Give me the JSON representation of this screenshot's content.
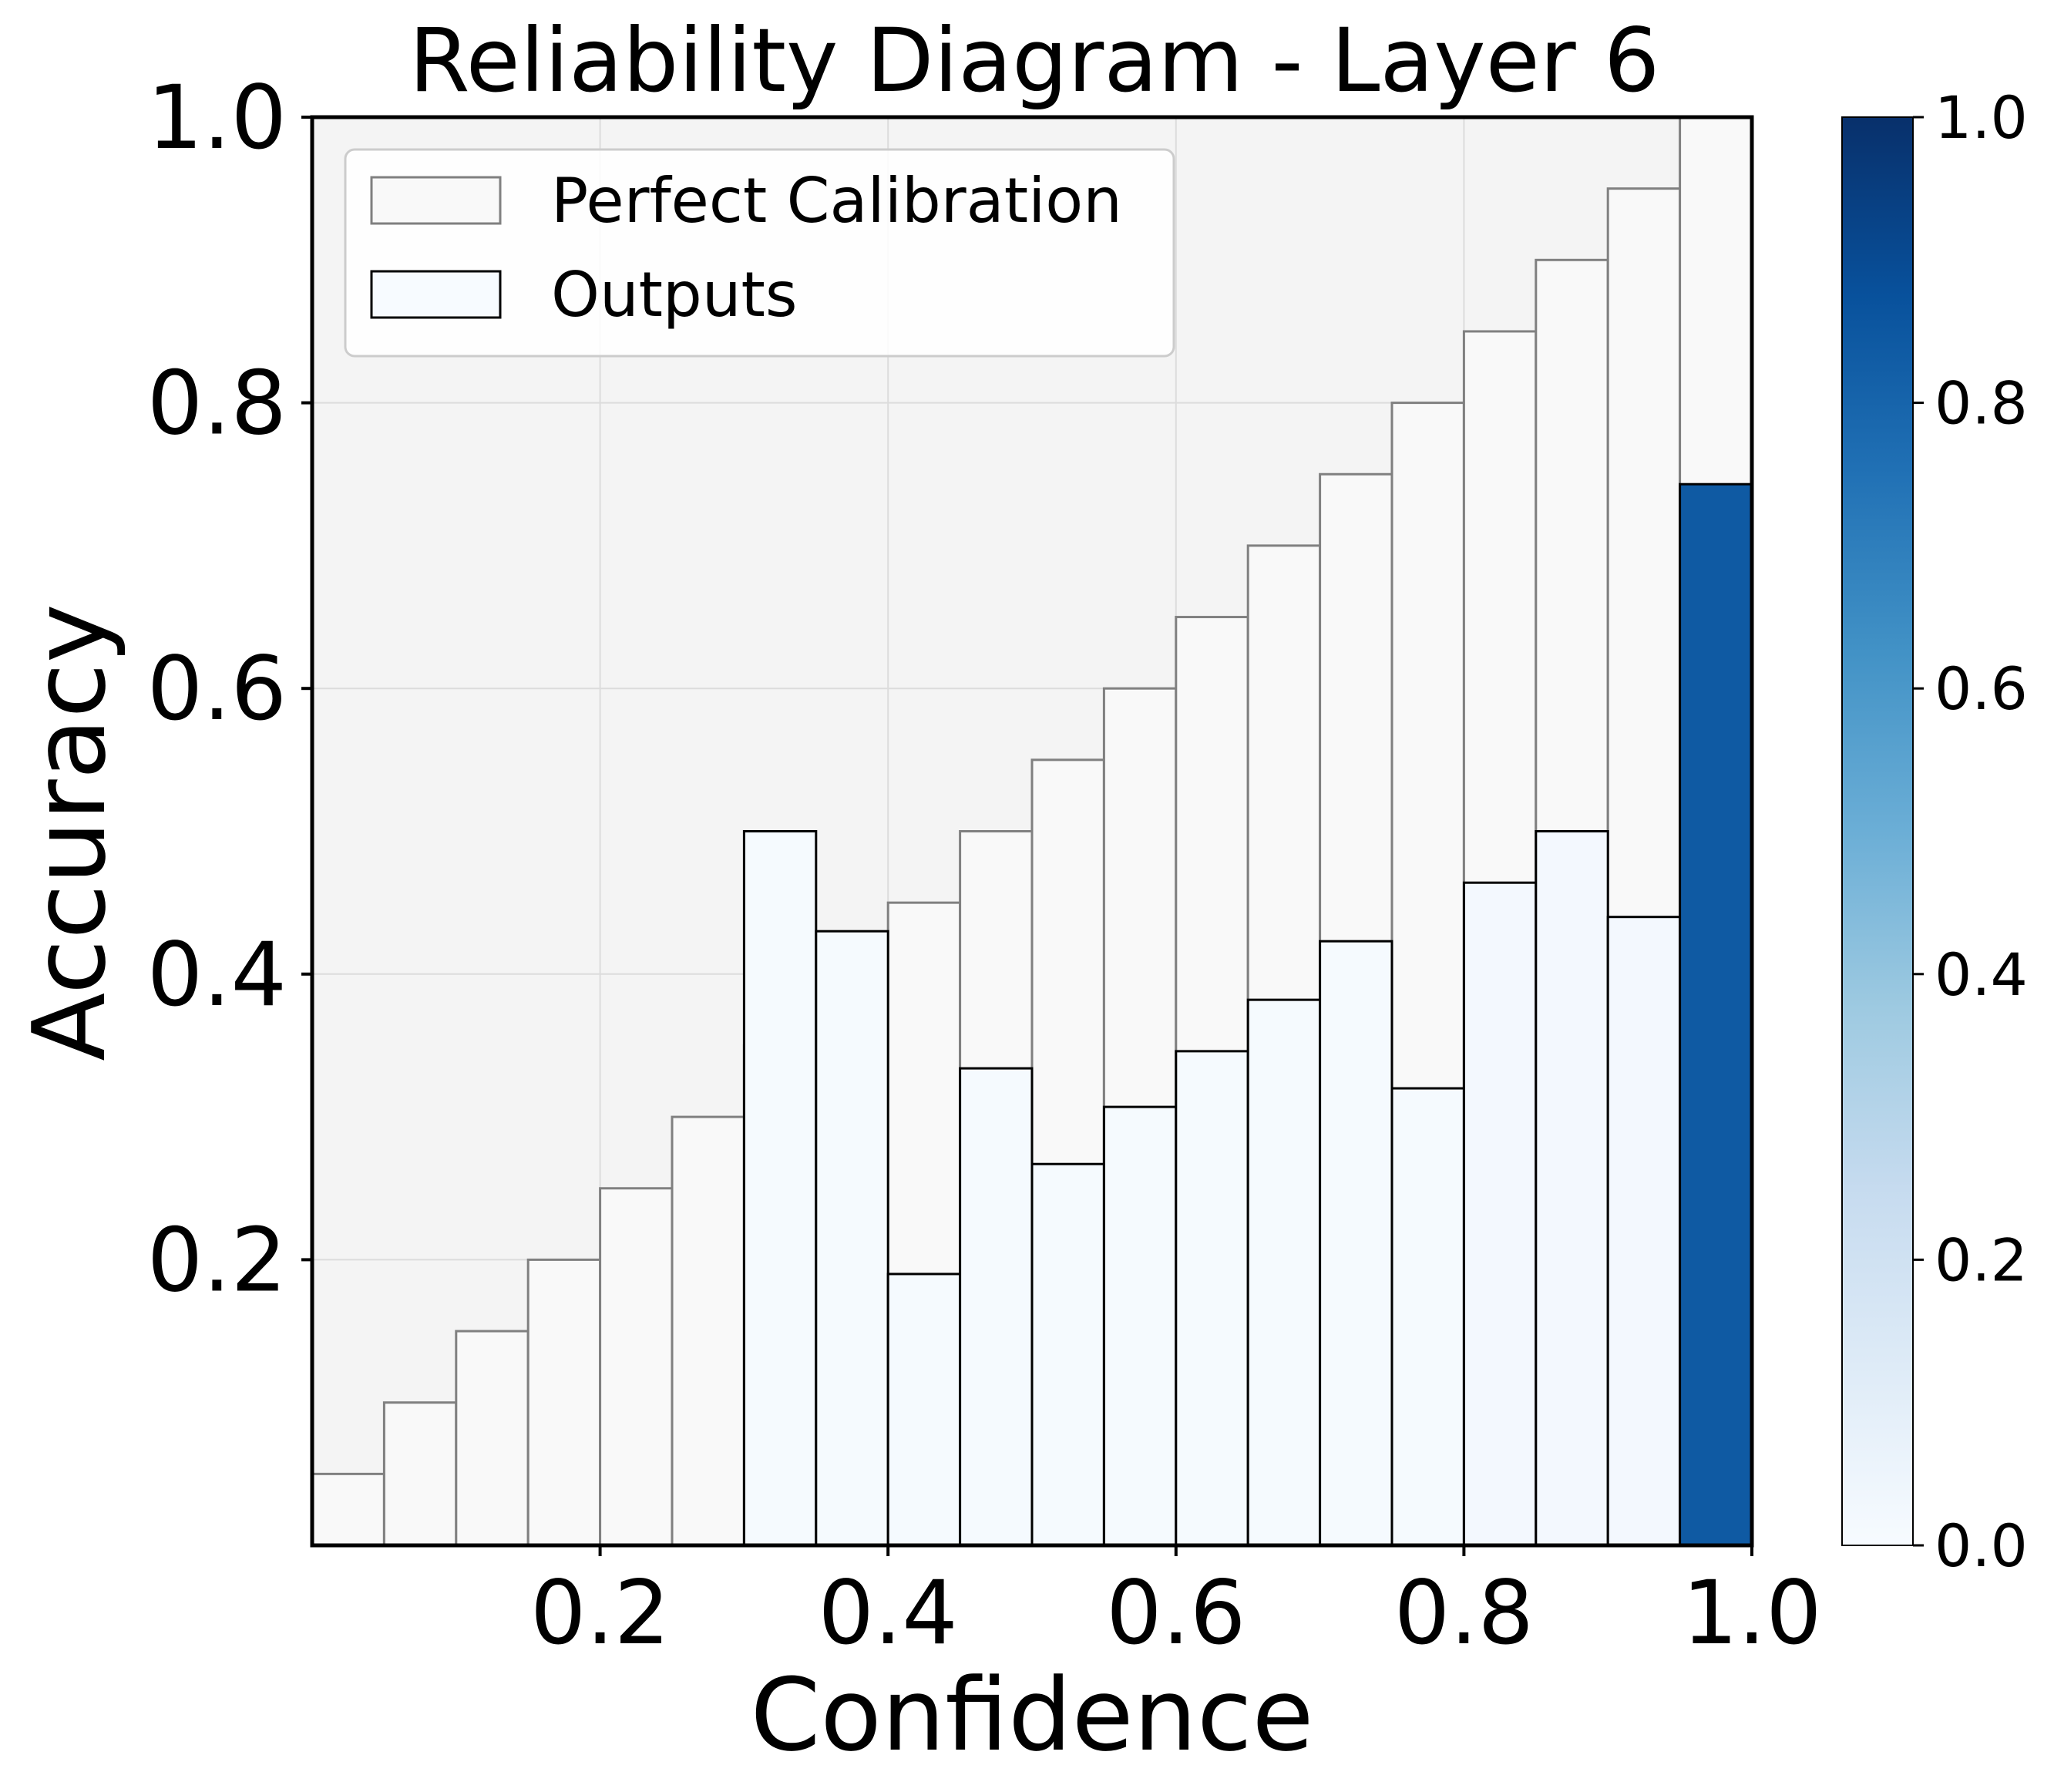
{
  "chart_data": {
    "type": "bar",
    "title": "Reliability Diagram - Layer 6",
    "xlabel": "Confidence",
    "ylabel": "Accuracy",
    "xlim": [
      0,
      1
    ],
    "ylim": [
      0,
      1
    ],
    "grid": true,
    "legend_position": "top-left",
    "x_ticks": [
      "0.2",
      "0.4",
      "0.6",
      "0.8",
      "1.0"
    ],
    "y_ticks": [
      "0.2",
      "0.4",
      "0.6",
      "0.8",
      "1.0"
    ],
    "bin_width": 0.05,
    "series": [
      {
        "name": "Perfect Calibration",
        "bin_starts": [
          0.0,
          0.05,
          0.1,
          0.15,
          0.2,
          0.25,
          0.3,
          0.35,
          0.4,
          0.45,
          0.5,
          0.55,
          0.6,
          0.65,
          0.7,
          0.75,
          0.8,
          0.85,
          0.9,
          0.95
        ],
        "values": [
          0.05,
          0.1,
          0.15,
          0.2,
          0.25,
          0.3,
          0.35,
          0.4,
          0.45,
          0.5,
          0.55,
          0.6,
          0.65,
          0.7,
          0.75,
          0.8,
          0.85,
          0.9,
          0.95,
          1.0
        ],
        "color": "#f9f9f9",
        "edge_color": "#808080"
      },
      {
        "name": "Outputs",
        "bin_starts": [
          0.3,
          0.35,
          0.4,
          0.45,
          0.5,
          0.55,
          0.6,
          0.65,
          0.7,
          0.75,
          0.8,
          0.85,
          0.9,
          0.95
        ],
        "values": [
          0.5,
          0.43,
          0.19,
          0.334,
          0.267,
          0.307,
          0.346,
          0.382,
          0.423,
          0.32,
          0.464,
          0.5,
          0.44,
          0.743
        ],
        "density": [
          0.01,
          0.01,
          0.01,
          0.01,
          0.01,
          0.01,
          0.01,
          0.01,
          0.01,
          0.01,
          0.02,
          0.02,
          0.02,
          0.84
        ],
        "edge_color": "#000000"
      }
    ],
    "colorbar": {
      "colormap": "Blues",
      "range": [
        0,
        1
      ],
      "ticks": [
        "0.0",
        "0.2",
        "0.4",
        "0.6",
        "0.8",
        "1.0"
      ]
    },
    "colors": {
      "plot_background": "#f4f4f4",
      "grid": "#dcdcdc"
    }
  }
}
